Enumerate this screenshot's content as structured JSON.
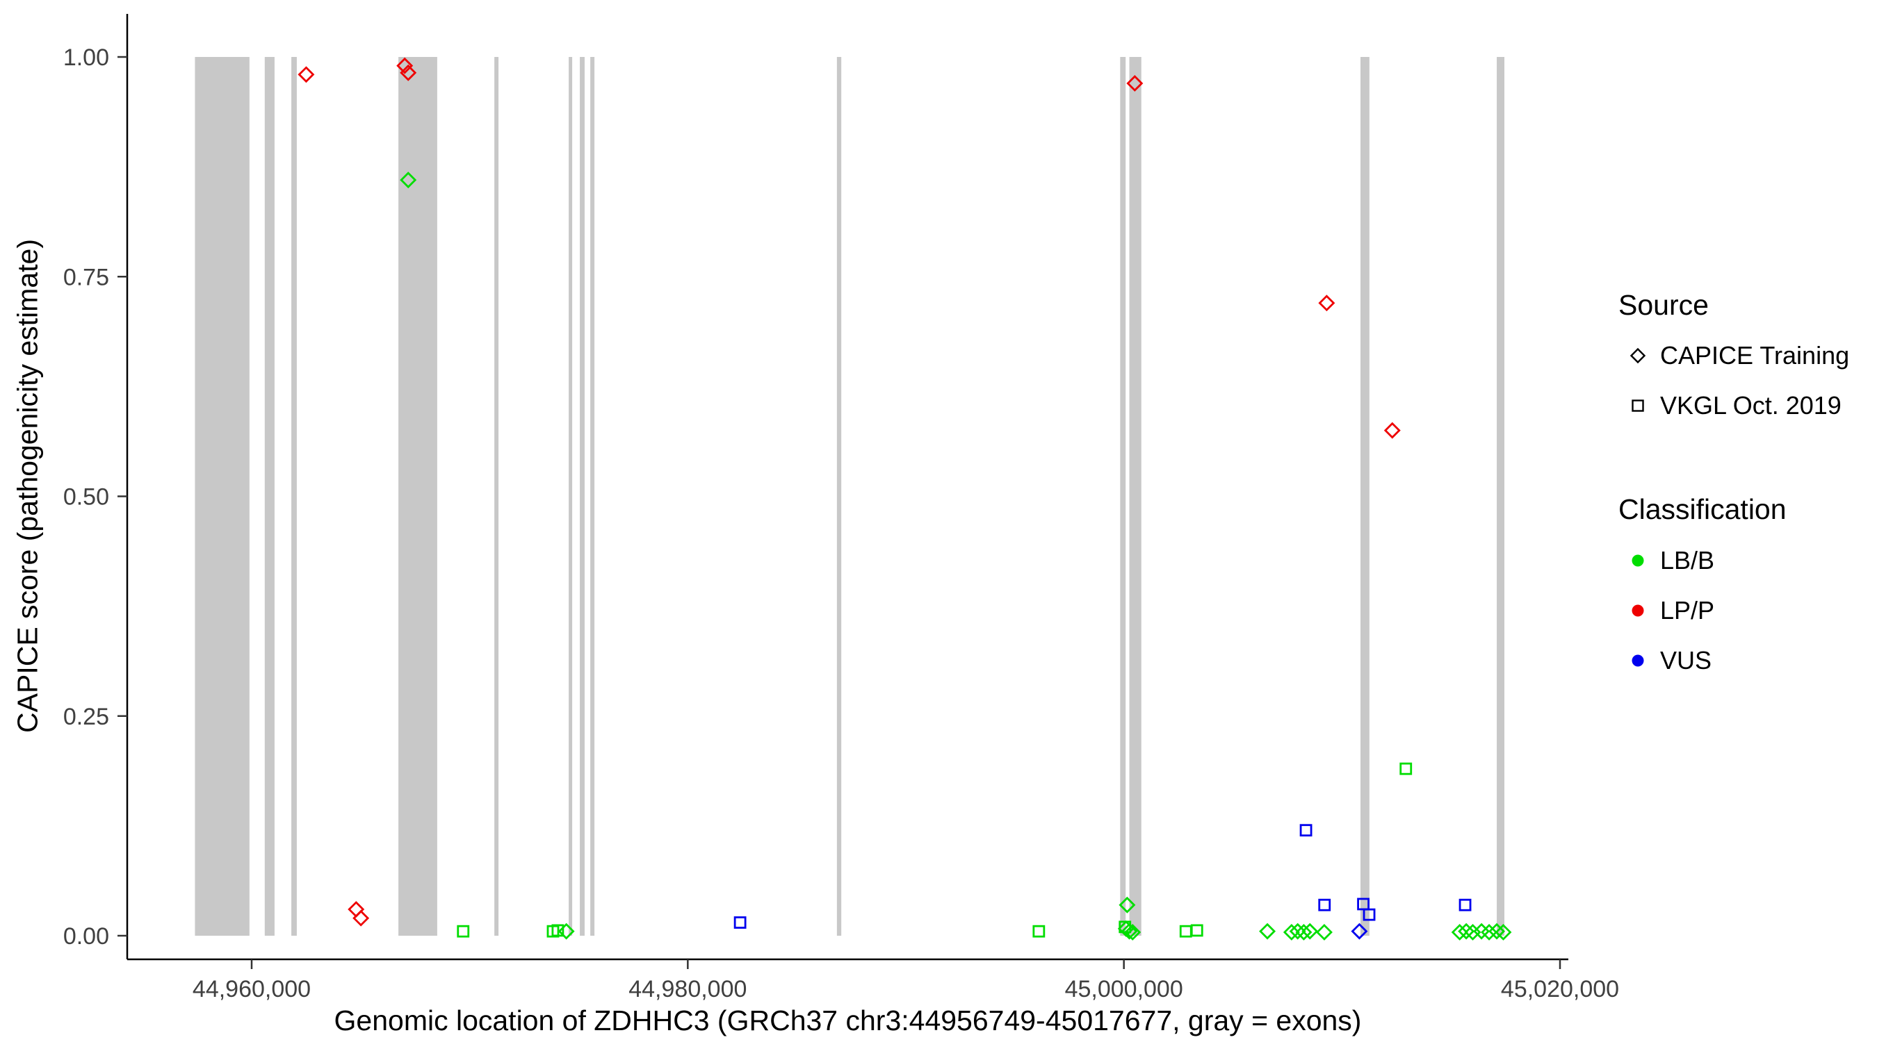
{
  "chart_data": {
    "type": "scatter",
    "title": "",
    "xlabel": "Genomic location of ZDHHC3 (GRCh37 chr3:44956749-45017677, gray = exons)",
    "ylabel": "CAPICE score (pathogenicity estimate)",
    "xlim": [
      44954300,
      45020700
    ],
    "ylim": [
      0.0,
      1.0
    ],
    "grid": false,
    "legend_position": "right",
    "x_ticks": [
      {
        "value": 44960000,
        "label": "44,960,000"
      },
      {
        "value": 44980000,
        "label": "44,980,000"
      },
      {
        "value": 45000000,
        "label": "45,000,000"
      },
      {
        "value": 45020000,
        "label": "45,020,000"
      }
    ],
    "y_ticks": [
      {
        "value": 0.0,
        "label": "0.00"
      },
      {
        "value": 0.25,
        "label": "0.25"
      },
      {
        "value": 0.5,
        "label": "0.50"
      },
      {
        "value": 0.75,
        "label": "0.75"
      },
      {
        "value": 1.0,
        "label": "1.00"
      }
    ],
    "exon_color": "#c8c8c8",
    "exons": [
      [
        44957400,
        44959900
      ],
      [
        44960600,
        44961050
      ],
      [
        44961820,
        44962070
      ],
      [
        44966730,
        44968510
      ],
      [
        44971130,
        44971320
      ],
      [
        44974540,
        44974700
      ],
      [
        44975050,
        44975270
      ],
      [
        44975530,
        44975720
      ],
      [
        44986840,
        44987040
      ],
      [
        44999830,
        45000080
      ],
      [
        45000250,
        45000800
      ],
      [
        45010850,
        45011260
      ],
      [
        45017100,
        45017450
      ]
    ],
    "classification_colors": {
      "LB/B": "#00dd00",
      "LP/P": "#ee0000",
      "VUS": "#0000ee"
    },
    "source_shapes": {
      "CAPICE Training": "diamond",
      "VKGL Oct. 2019": "square"
    },
    "points": [
      {
        "pos": 44962500,
        "score": 0.98,
        "source": "CAPICE Training",
        "classification": "LP/P"
      },
      {
        "pos": 44964790,
        "score": 0.03,
        "source": "CAPICE Training",
        "classification": "LP/P"
      },
      {
        "pos": 44965010,
        "score": 0.02,
        "source": "CAPICE Training",
        "classification": "LP/P"
      },
      {
        "pos": 44967020,
        "score": 0.99,
        "source": "CAPICE Training",
        "classification": "LP/P"
      },
      {
        "pos": 44967180,
        "score": 0.982,
        "source": "CAPICE Training",
        "classification": "LP/P"
      },
      {
        "pos": 45000500,
        "score": 0.97,
        "source": "CAPICE Training",
        "classification": "LP/P"
      },
      {
        "pos": 45009300,
        "score": 0.72,
        "source": "CAPICE Training",
        "classification": "LP/P"
      },
      {
        "pos": 45012310,
        "score": 0.575,
        "source": "CAPICE Training",
        "classification": "LP/P"
      },
      {
        "pos": 44967180,
        "score": 0.86,
        "source": "CAPICE Training",
        "classification": "LB/B"
      },
      {
        "pos": 44974430,
        "score": 0.005,
        "source": "CAPICE Training",
        "classification": "LB/B"
      },
      {
        "pos": 45000150,
        "score": 0.035,
        "source": "CAPICE Training",
        "classification": "LB/B"
      },
      {
        "pos": 45000100,
        "score": 0.008,
        "source": "CAPICE Training",
        "classification": "LB/B"
      },
      {
        "pos": 45000250,
        "score": 0.005,
        "source": "CAPICE Training",
        "classification": "LB/B"
      },
      {
        "pos": 45000400,
        "score": 0.004,
        "source": "CAPICE Training",
        "classification": "LB/B"
      },
      {
        "pos": 45006580,
        "score": 0.005,
        "source": "CAPICE Training",
        "classification": "LB/B"
      },
      {
        "pos": 45007690,
        "score": 0.004,
        "source": "CAPICE Training",
        "classification": "LB/B"
      },
      {
        "pos": 45007970,
        "score": 0.005,
        "source": "CAPICE Training",
        "classification": "LB/B"
      },
      {
        "pos": 45008250,
        "score": 0.004,
        "source": "CAPICE Training",
        "classification": "LB/B"
      },
      {
        "pos": 45008530,
        "score": 0.005,
        "source": "CAPICE Training",
        "classification": "LB/B"
      },
      {
        "pos": 45009190,
        "score": 0.004,
        "source": "CAPICE Training",
        "classification": "LB/B"
      },
      {
        "pos": 45015400,
        "score": 0.004,
        "source": "CAPICE Training",
        "classification": "LB/B"
      },
      {
        "pos": 45015700,
        "score": 0.005,
        "source": "CAPICE Training",
        "classification": "LB/B"
      },
      {
        "pos": 45016000,
        "score": 0.004,
        "source": "CAPICE Training",
        "classification": "LB/B"
      },
      {
        "pos": 45016400,
        "score": 0.005,
        "source": "CAPICE Training",
        "classification": "LB/B"
      },
      {
        "pos": 45016750,
        "score": 0.004,
        "source": "CAPICE Training",
        "classification": "LB/B"
      },
      {
        "pos": 45017100,
        "score": 0.005,
        "source": "CAPICE Training",
        "classification": "LB/B"
      },
      {
        "pos": 45017400,
        "score": 0.004,
        "source": "CAPICE Training",
        "classification": "LB/B"
      },
      {
        "pos": 45010800,
        "score": 0.005,
        "source": "CAPICE Training",
        "classification": "VUS"
      },
      {
        "pos": 44969700,
        "score": 0.005,
        "source": "VKGL Oct. 2019",
        "classification": "LB/B"
      },
      {
        "pos": 44973820,
        "score": 0.005,
        "source": "VKGL Oct. 2019",
        "classification": "LB/B"
      },
      {
        "pos": 44974040,
        "score": 0.006,
        "source": "VKGL Oct. 2019",
        "classification": "LB/B"
      },
      {
        "pos": 44996100,
        "score": 0.005,
        "source": "VKGL Oct. 2019",
        "classification": "LB/B"
      },
      {
        "pos": 45000050,
        "score": 0.01,
        "source": "VKGL Oct. 2019",
        "classification": "LB/B"
      },
      {
        "pos": 45002840,
        "score": 0.005,
        "source": "VKGL Oct. 2019",
        "classification": "LB/B"
      },
      {
        "pos": 45003350,
        "score": 0.006,
        "source": "VKGL Oct. 2019",
        "classification": "LB/B"
      },
      {
        "pos": 45012930,
        "score": 0.19,
        "source": "VKGL Oct. 2019",
        "classification": "LB/B"
      },
      {
        "pos": 44982400,
        "score": 0.015,
        "source": "VKGL Oct. 2019",
        "classification": "VUS"
      },
      {
        "pos": 45008350,
        "score": 0.12,
        "source": "VKGL Oct. 2019",
        "classification": "VUS"
      },
      {
        "pos": 45009200,
        "score": 0.035,
        "source": "VKGL Oct. 2019",
        "classification": "VUS"
      },
      {
        "pos": 45010980,
        "score": 0.036,
        "source": "VKGL Oct. 2019",
        "classification": "VUS"
      },
      {
        "pos": 45011250,
        "score": 0.024,
        "source": "VKGL Oct. 2019",
        "classification": "VUS"
      },
      {
        "pos": 45015650,
        "score": 0.035,
        "source": "VKGL Oct. 2019",
        "classification": "VUS"
      }
    ],
    "legend": {
      "source_title": "Source",
      "source_items": [
        {
          "label": "CAPICE Training",
          "shape": "diamond"
        },
        {
          "label": "VKGL Oct. 2019",
          "shape": "square"
        }
      ],
      "classification_title": "Classification",
      "classification_items": [
        {
          "label": "LB/B",
          "color": "#00dd00"
        },
        {
          "label": "LP/P",
          "color": "#ee0000"
        },
        {
          "label": "VUS",
          "color": "#0000ee"
        }
      ]
    }
  }
}
